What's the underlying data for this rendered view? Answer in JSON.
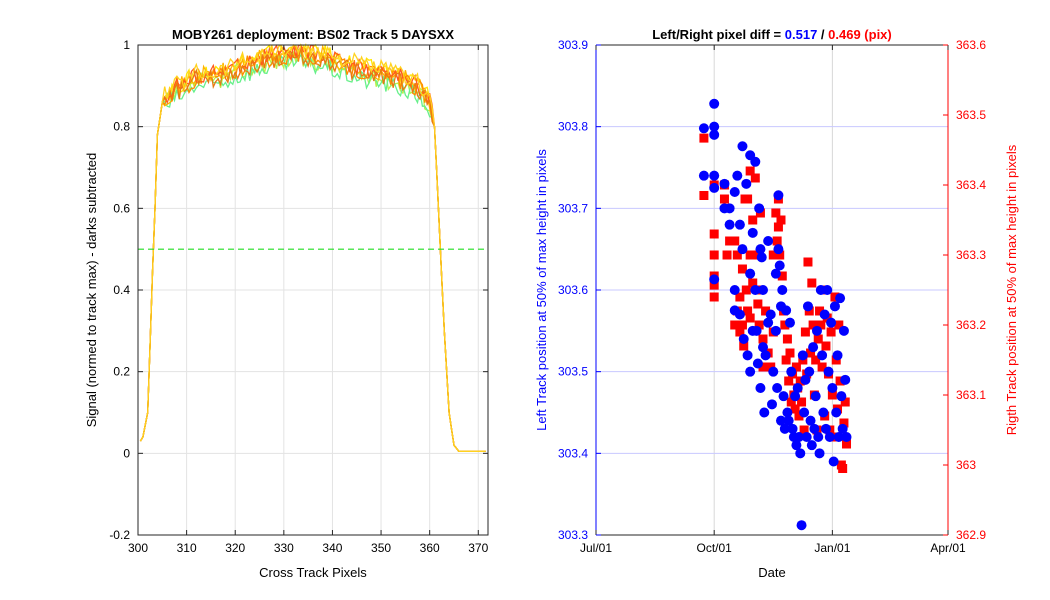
{
  "chart_data": [
    {
      "type": "line",
      "title": "MOBY261 deployment: BS02  Track 5 DAYSXX",
      "xlabel": "Cross Track Pixels",
      "ylabel": "Signal (normed to track max) - darks subtracted",
      "xlim": [
        300,
        372
      ],
      "ylim": [
        -0.2,
        1
      ],
      "xticks": [
        "300",
        "310",
        "320",
        "330",
        "340",
        "350",
        "360",
        "370"
      ],
      "yticks": [
        "-0.2",
        "0",
        "0.2",
        "0.4",
        "0.6",
        "0.8",
        "1"
      ],
      "grid": true,
      "threshold": {
        "y": 0.5,
        "color": "#22dd22"
      },
      "series": [
        {
          "color": "#ffe600",
          "offset": 0.012,
          "seed": 1
        },
        {
          "color": "#b8f04a",
          "offset": -0.01,
          "seed": 2
        },
        {
          "color": "#66f08a",
          "offset": -0.02,
          "seed": 3
        },
        {
          "color": "#ffb400",
          "offset": 0.006,
          "seed": 4
        },
        {
          "color": "#ff8c00",
          "offset": 0.0,
          "seed": 5
        },
        {
          "color": "#ff5a1e",
          "offset": 0.008,
          "seed": 6
        },
        {
          "color": "#e87a10",
          "offset": -0.004,
          "seed": 7
        },
        {
          "color": "#ffd21e",
          "offset": 0.015,
          "seed": 8
        }
      ],
      "profile": {
        "x": [
          300,
          301,
          302,
          303,
          303.5,
          304,
          305,
          306,
          308,
          310,
          312,
          315,
          318,
          320,
          322,
          325,
          328,
          330,
          332,
          335,
          338,
          340,
          342,
          345,
          348,
          350,
          352,
          355,
          358,
          360,
          361,
          362,
          363,
          364,
          365,
          366,
          368,
          370,
          372
        ],
        "y": [
          0.02,
          0.04,
          0.1,
          0.45,
          0.6,
          0.78,
          0.86,
          0.87,
          0.89,
          0.9,
          0.92,
          0.92,
          0.93,
          0.94,
          0.95,
          0.96,
          0.97,
          0.97,
          0.98,
          0.97,
          0.97,
          0.96,
          0.95,
          0.94,
          0.93,
          0.93,
          0.92,
          0.91,
          0.89,
          0.86,
          0.8,
          0.55,
          0.3,
          0.1,
          0.02,
          0.005,
          0.005,
          0.005,
          0.005
        ]
      }
    },
    {
      "type": "scatter",
      "title_prefix": "Left/Right pixel diff = ",
      "title_left_value": "0.517",
      "title_sep": " / ",
      "title_right_value": "0.469 (pix)",
      "xlabel": "Date",
      "ylabel_left": "Left Track position at 50% of max height in pixels",
      "ylabel_right": "Rigth Track position at 50% of max height in pixels",
      "xticks": [
        "Jul/01",
        "Oct/01",
        "Jan/01",
        "Apr/01"
      ],
      "xlim_days": [
        0,
        274
      ],
      "ylim_left": [
        303.3,
        303.9
      ],
      "ylim_right": [
        362.9,
        363.6
      ],
      "yticks_left": [
        "303.3",
        "303.4",
        "303.5",
        "303.6",
        "303.7",
        "303.8",
        "303.9"
      ],
      "yticks_right": [
        "362.9",
        "363",
        "363.1",
        "363.2",
        "363.3",
        "363.4",
        "363.5",
        "363.6"
      ],
      "left_color": "#0000ff",
      "right_color": "#ff0000",
      "left_points": [
        [
          84,
          303.798
        ],
        [
          84,
          303.74
        ],
        [
          92,
          303.828
        ],
        [
          92,
          303.8
        ],
        [
          92,
          303.79
        ],
        [
          92,
          303.74
        ],
        [
          92,
          303.725
        ],
        [
          92,
          303.613
        ],
        [
          100,
          303.73
        ],
        [
          100,
          303.7
        ],
        [
          104,
          303.7
        ],
        [
          104,
          303.68
        ],
        [
          108,
          303.72
        ],
        [
          108,
          303.6
        ],
        [
          108,
          303.575
        ],
        [
          110,
          303.74
        ],
        [
          112,
          303.68
        ],
        [
          112,
          303.57
        ],
        [
          114,
          303.776
        ],
        [
          114,
          303.65
        ],
        [
          115,
          303.54
        ],
        [
          117,
          303.73
        ],
        [
          118,
          303.52
        ],
        [
          120,
          303.765
        ],
        [
          120,
          303.62
        ],
        [
          120,
          303.5
        ],
        [
          122,
          303.67
        ],
        [
          122,
          303.55
        ],
        [
          124,
          303.757
        ],
        [
          124,
          303.6
        ],
        [
          125,
          303.55
        ],
        [
          126,
          303.51
        ],
        [
          127,
          303.7
        ],
        [
          128,
          303.65
        ],
        [
          128,
          303.48
        ],
        [
          129,
          303.64
        ],
        [
          130,
          303.6
        ],
        [
          130,
          303.53
        ],
        [
          131,
          303.45
        ],
        [
          132,
          303.52
        ],
        [
          134,
          303.66
        ],
        [
          134,
          303.56
        ],
        [
          136,
          303.57
        ],
        [
          137,
          303.46
        ],
        [
          138,
          303.5
        ],
        [
          140,
          303.62
        ],
        [
          140,
          303.55
        ],
        [
          141,
          303.48
        ],
        [
          142,
          303.716
        ],
        [
          142,
          303.65
        ],
        [
          143,
          303.63
        ],
        [
          144,
          303.58
        ],
        [
          144,
          303.44
        ],
        [
          145,
          303.6
        ],
        [
          146,
          303.47
        ],
        [
          147,
          303.43
        ],
        [
          148,
          303.575
        ],
        [
          149,
          303.45
        ],
        [
          150,
          303.44
        ],
        [
          151,
          303.56
        ],
        [
          152,
          303.5
        ],
        [
          153,
          303.43
        ],
        [
          154,
          303.42
        ],
        [
          155,
          303.47
        ],
        [
          156,
          303.41
        ],
        [
          157,
          303.48
        ],
        [
          158,
          303.42
        ],
        [
          159,
          303.4
        ],
        [
          160,
          303.312
        ],
        [
          161,
          303.52
        ],
        [
          162,
          303.45
        ],
        [
          163,
          303.49
        ],
        [
          164,
          303.42
        ],
        [
          165,
          303.58
        ],
        [
          166,
          303.5
        ],
        [
          167,
          303.44
        ],
        [
          168,
          303.41
        ],
        [
          169,
          303.53
        ],
        [
          170,
          303.43
        ],
        [
          171,
          303.47
        ],
        [
          172,
          303.55
        ],
        [
          173,
          303.42
        ],
        [
          174,
          303.4
        ],
        [
          175,
          303.6
        ],
        [
          176,
          303.52
        ],
        [
          177,
          303.45
        ],
        [
          178,
          303.57
        ],
        [
          179,
          303.43
        ],
        [
          180,
          303.6
        ],
        [
          181,
          303.5
        ],
        [
          182,
          303.42
        ],
        [
          183,
          303.56
        ],
        [
          184,
          303.48
        ],
        [
          185,
          303.39
        ],
        [
          186,
          303.58
        ],
        [
          187,
          303.45
        ],
        [
          188,
          303.52
        ],
        [
          189,
          303.42
        ],
        [
          190,
          303.59
        ],
        [
          191,
          303.47
        ],
        [
          192,
          303.43
        ],
        [
          193,
          303.55
        ],
        [
          194,
          303.49
        ],
        [
          195,
          303.42
        ]
      ],
      "right_points": [
        [
          84,
          363.467
        ],
        [
          84,
          363.385
        ],
        [
          92,
          363.4
        ],
        [
          92,
          363.33
        ],
        [
          92,
          363.3
        ],
        [
          92,
          363.27
        ],
        [
          92,
          363.257
        ],
        [
          92,
          363.24
        ],
        [
          100,
          363.4
        ],
        [
          100,
          363.38
        ],
        [
          102,
          363.3
        ],
        [
          104,
          363.32
        ],
        [
          108,
          363.32
        ],
        [
          108,
          363.2
        ],
        [
          110,
          363.22
        ],
        [
          110,
          363.3
        ],
        [
          112,
          363.24
        ],
        [
          112,
          363.19
        ],
        [
          114,
          363.28
        ],
        [
          114,
          363.2
        ],
        [
          115,
          363.17
        ],
        [
          116,
          363.38
        ],
        [
          117,
          363.25
        ],
        [
          118,
          363.22
        ],
        [
          118,
          363.38
        ],
        [
          120,
          363.42
        ],
        [
          120,
          363.3
        ],
        [
          120,
          363.21
        ],
        [
          122,
          363.35
        ],
        [
          122,
          363.26
        ],
        [
          124,
          363.41
        ],
        [
          124,
          363.3
        ],
        [
          126,
          363.23
        ],
        [
          127,
          363.2
        ],
        [
          128,
          363.36
        ],
        [
          128,
          363.25
        ],
        [
          130,
          363.18
        ],
        [
          130,
          363.14
        ],
        [
          132,
          363.22
        ],
        [
          134,
          363.16
        ],
        [
          136,
          363.14
        ],
        [
          138,
          363.3
        ],
        [
          138,
          363.19
        ],
        [
          140,
          363.36
        ],
        [
          141,
          363.32
        ],
        [
          142,
          363.38
        ],
        [
          142,
          363.34
        ],
        [
          143,
          363.3
        ],
        [
          144,
          363.35
        ],
        [
          145,
          363.27
        ],
        [
          146,
          363.22
        ],
        [
          147,
          363.2
        ],
        [
          148,
          363.15
        ],
        [
          149,
          363.18
        ],
        [
          150,
          363.12
        ],
        [
          151,
          363.16
        ],
        [
          152,
          363.09
        ],
        [
          153,
          363.13
        ],
        [
          154,
          363.1
        ],
        [
          155,
          363.08
        ],
        [
          156,
          363.14
        ],
        [
          157,
          363.11
        ],
        [
          158,
          363.07
        ],
        [
          159,
          363.12
        ],
        [
          160,
          363.09
        ],
        [
          161,
          363.15
        ],
        [
          162,
          363.05
        ],
        [
          163,
          363.19
        ],
        [
          164,
          363.13
        ],
        [
          165,
          363.29
        ],
        [
          166,
          363.22
        ],
        [
          167,
          363.16
        ],
        [
          168,
          363.26
        ],
        [
          169,
          363.2
        ],
        [
          170,
          363.1
        ],
        [
          171,
          363.15
        ],
        [
          172,
          363.05
        ],
        [
          173,
          363.18
        ],
        [
          174,
          363.22
        ],
        [
          175,
          363.2
        ],
        [
          176,
          363.14
        ],
        [
          177,
          363.25
        ],
        [
          178,
          363.07
        ],
        [
          179,
          363.17
        ],
        [
          180,
          363.21
        ],
        [
          181,
          363.13
        ],
        [
          182,
          363.05
        ],
        [
          183,
          363.19
        ],
        [
          184,
          363.1
        ],
        [
          185,
          363.04
        ],
        [
          186,
          363.24
        ],
        [
          187,
          363.15
        ],
        [
          188,
          363.08
        ],
        [
          189,
          363.2
        ],
        [
          190,
          363.12
        ],
        [
          191,
          363.0
        ],
        [
          192,
          362.995
        ],
        [
          193,
          363.06
        ],
        [
          194,
          363.09
        ],
        [
          195,
          363.03
        ]
      ]
    }
  ]
}
